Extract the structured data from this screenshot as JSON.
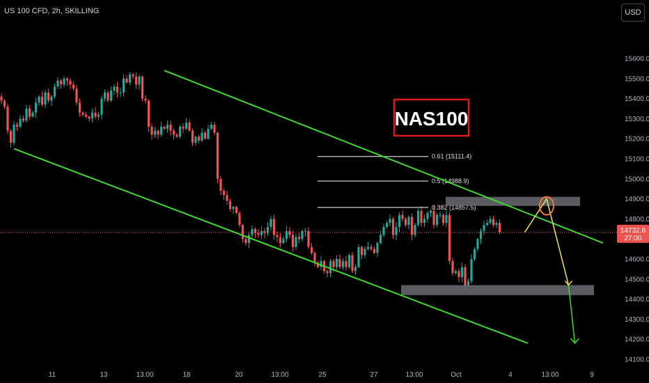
{
  "header": {
    "symbol": "US 100 CFD, 2h, SKILLING",
    "currency": "USD"
  },
  "colors": {
    "background": "#000000",
    "up": "#26a69a",
    "down": "#ef5350",
    "channel": "#3fd92f",
    "price_line": "#ef5350",
    "fib_line": "#ffffff",
    "zone": "#6a6c72",
    "box_border": "#e0191b",
    "arrow_yellow": "#f2e45a",
    "arrow_green": "#3fd92f",
    "circle": "#f07a3c"
  },
  "annotation": {
    "title": "NAS100"
  },
  "current_price": {
    "value": 14732.6,
    "label": "14732.6",
    "countdown": "27:00"
  },
  "chart_data": {
    "type": "candlestick",
    "symbol": "US 100 CFD, 2h, SKILLING",
    "ylim": [
      14050,
      15800
    ],
    "y_ticks": [
      15600.0,
      15500.0,
      15400.0,
      15300.0,
      15200.0,
      15100.0,
      15000.0,
      14900.0,
      14800.0,
      14700.0,
      14600.0,
      14500.0,
      14400.0,
      14300.0,
      14200.0,
      14100.0
    ],
    "y_tick_labels": [
      "15600.0",
      "15500.0",
      "15400.0",
      "15300.0",
      "15200.0",
      "15100.0",
      "15000.0",
      "14900.0",
      "14800.0",
      "14700.0",
      "14600.0",
      "14500.0",
      "14400.0",
      "14300.0",
      "14200.0",
      "14100.0"
    ],
    "x_tick_labels": [
      "11",
      "13",
      "13:00",
      "18",
      "20",
      "13:00",
      "25",
      "27",
      "13:00",
      "Oct",
      "4",
      "13:00",
      "9"
    ],
    "closes": [
      15390,
      15360,
      15240,
      15180,
      15270,
      15260,
      15300,
      15290,
      15350,
      15310,
      15330,
      15380,
      15410,
      15370,
      15430,
      15390,
      15410,
      15460,
      15490,
      15470,
      15500,
      15490,
      15470,
      15450,
      15380,
      15330,
      15320,
      15310,
      15300,
      15330,
      15310,
      15320,
      15400,
      15430,
      15390,
      15440,
      15460,
      15430,
      15430,
      15500,
      15480,
      15520,
      15510,
      15470,
      15510,
      15400,
      15390,
      15260,
      15220,
      15240,
      15220,
      15260,
      15250,
      15270,
      15240,
      15220,
      15210,
      15260,
      15250,
      15280,
      15240,
      15180,
      15210,
      15190,
      15230,
      15200,
      15250,
      15270,
      15230,
      15000,
      14940,
      14920,
      14890,
      14850,
      14860,
      14830,
      14770,
      14700,
      14680,
      14720,
      14750,
      14730,
      14720,
      14740,
      14730,
      14760,
      14800,
      14720,
      14710,
      14680,
      14700,
      14740,
      14720,
      14660,
      14710,
      14700,
      14740,
      14740,
      14660,
      14630,
      14580,
      14560,
      14590,
      14540,
      14530,
      14590,
      14560,
      14600,
      14560,
      14590,
      14560,
      14620,
      14540,
      14560,
      14660,
      14620,
      14650,
      14660,
      14650,
      14630,
      14680,
      14720,
      14760,
      14780,
      14800,
      14720,
      14760,
      14820,
      14800,
      14770,
      14810,
      14720,
      14770,
      14840,
      14780,
      14800,
      14830,
      14840,
      14770,
      14820,
      14820,
      14780,
      14820,
      14590,
      14530,
      14540,
      14510,
      14560,
      14470,
      14490,
      14600,
      14650,
      14700,
      14740,
      14770,
      14780,
      14800,
      14770,
      14780,
      14733
    ],
    "fib_levels": [
      {
        "ratio": "0.382",
        "price": 14857.5,
        "label": "0.382 (14857.5)"
      },
      {
        "ratio": "0.5",
        "price": 14988.9,
        "label": "0.5 (14988.9)"
      },
      {
        "ratio": "0.61",
        "price": 15111.4,
        "label": "0.61 (15111.4)"
      }
    ],
    "resistance_zone": [
      14865,
      14910
    ],
    "support_zone": [
      14420,
      14470
    ],
    "channel_upper": {
      "from": {
        "bar": 52,
        "price": 15540
      },
      "to": {
        "bar": 192,
        "price": 14680
      }
    },
    "channel_lower": {
      "from": {
        "bar": 4,
        "price": 15150
      },
      "to": {
        "bar": 168,
        "price": 14180
      }
    },
    "projection_yellow": [
      {
        "bar": 167,
        "price": 14733
      },
      {
        "bar": 174,
        "price": 14900
      },
      {
        "bar": 181,
        "price": 14470
      }
    ],
    "projection_green": [
      {
        "bar": 181,
        "price": 14470
      },
      {
        "bar": 183,
        "price": 14180
      }
    ],
    "grid": false
  }
}
